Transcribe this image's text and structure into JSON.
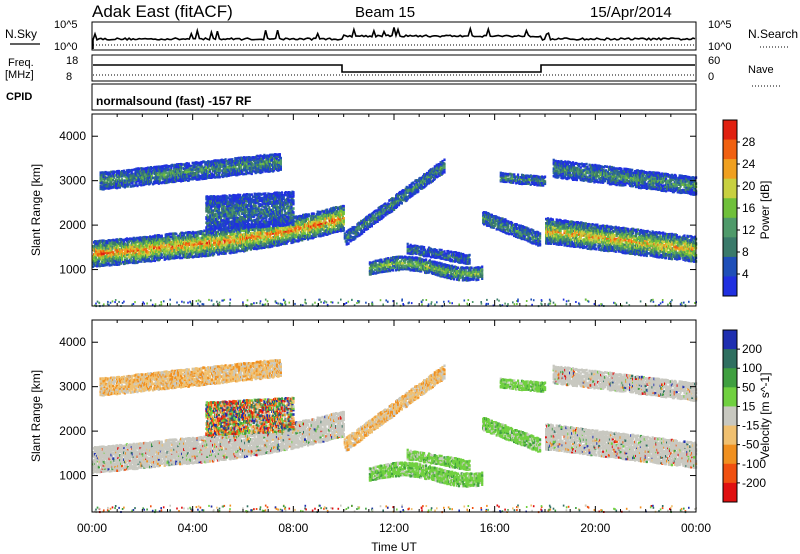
{
  "header": {
    "station": "Adak East (fitACF)",
    "beam": "Beam 15",
    "date": "15/Apr/2014"
  },
  "noise_panel": {
    "left_label": "N.Sky",
    "right_label": "N.Search",
    "ticks_left": [
      "10^5",
      "10^0"
    ],
    "ticks_right": [
      "10^5",
      "10^0"
    ]
  },
  "freq_panel": {
    "left_label_1": "Freq.",
    "left_label_2": "[MHz]",
    "right_label": "Nave",
    "ticks_left": [
      "18",
      "8"
    ],
    "ticks_right": [
      "60",
      "0"
    ]
  },
  "cpid": {
    "label": "CPID",
    "text": "normalsound (fast) -157 RF"
  },
  "chart_data": [
    {
      "type": "heatmap",
      "title": "Power",
      "ylabel": "Slant Range [km]",
      "xlabel": "Time UT",
      "xlim": [
        "00:00",
        "24:00"
      ],
      "ylim": [
        180,
        4500
      ],
      "y_ticks": [
        "1000",
        "2000",
        "3000",
        "4000"
      ],
      "x_ticks": [
        "00:00",
        "04:00",
        "08:00",
        "12:00",
        "16:00",
        "20:00",
        "00:00"
      ],
      "colorbar": {
        "label": "Power [dB]",
        "ticks": [
          "4",
          "8",
          "12",
          "16",
          "20",
          "24",
          "28"
        ],
        "colors": [
          "#2030e0",
          "#1f4fb8",
          "#3a7a6a",
          "#4f9a6a",
          "#6fc03a",
          "#c8d040",
          "#f0a020",
          "#f06010",
          "#e02010"
        ]
      }
    },
    {
      "type": "heatmap",
      "title": "Velocity",
      "ylabel": "Slant Range [km]",
      "xlabel": "Time UT",
      "xlim": [
        "00:00",
        "24:00"
      ],
      "ylim": [
        180,
        4500
      ],
      "y_ticks": [
        "1000",
        "2000",
        "3000",
        "4000"
      ],
      "x_ticks": [
        "00:00",
        "04:00",
        "08:00",
        "12:00",
        "16:00",
        "20:00",
        "00:00"
      ],
      "colorbar": {
        "label": "Velocity [m s^-1]",
        "ticks": [
          "200",
          "100",
          "50",
          "15",
          "-15",
          "-50",
          "-100",
          "-200"
        ],
        "colors": [
          "#1f2fb0",
          "#2f6f60",
          "#3f9f40",
          "#70d040",
          "#c8c8c0",
          "#f0c070",
          "#f09020",
          "#f05010",
          "#e01010"
        ]
      }
    }
  ]
}
